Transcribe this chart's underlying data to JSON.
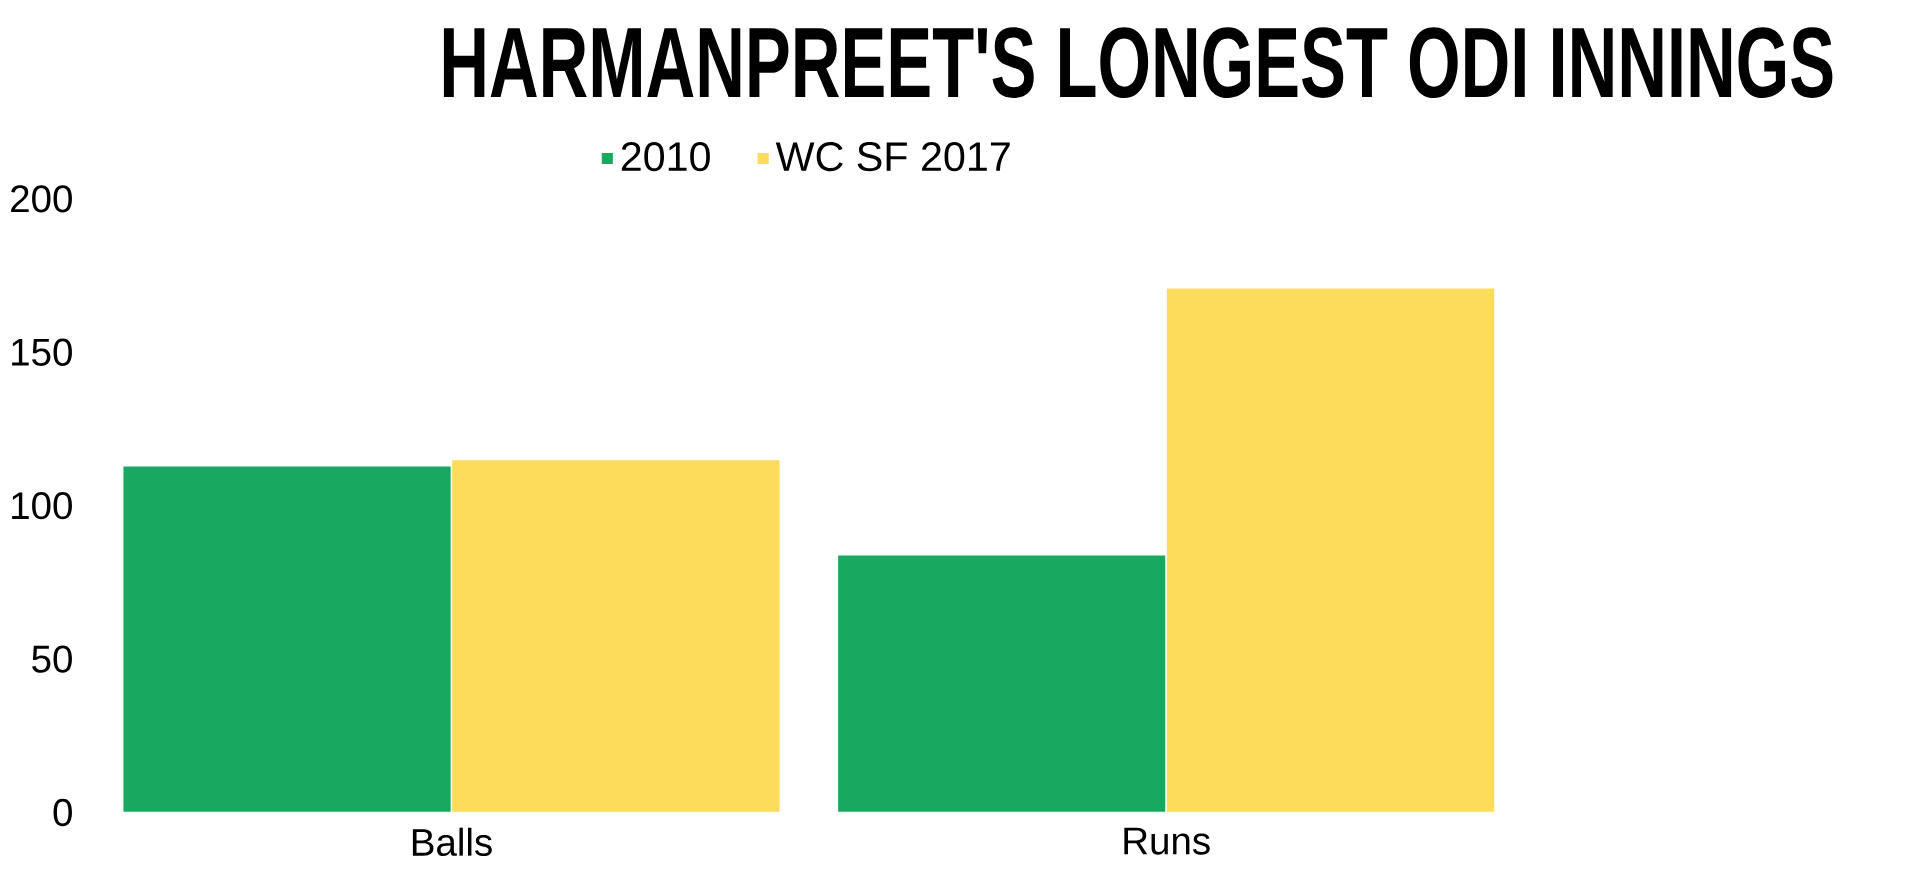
{
  "chart_data": {
    "type": "bar",
    "title": "HARMANPREET'S LONGEST ODI INNINGS",
    "categories": [
      "Balls",
      "Runs"
    ],
    "series": [
      {
        "name": "2010",
        "color": "#18a85f",
        "values": [
          113,
          84
        ]
      },
      {
        "name": "WC SF 2017",
        "color": "#fddc5c",
        "values": [
          115,
          171
        ]
      }
    ],
    "ylim": [
      0,
      200
    ],
    "yticks": [
      0,
      50,
      100,
      150,
      200
    ],
    "legend": "top"
  }
}
